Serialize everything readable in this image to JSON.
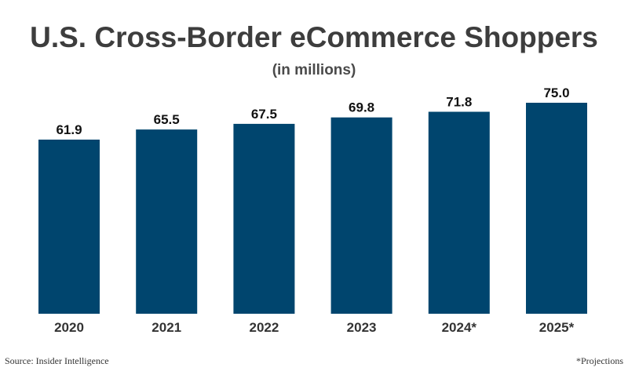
{
  "chart_data": {
    "type": "bar",
    "title": "U.S. Cross-Border eCommerce Shoppers",
    "subtitle": "(in millions)",
    "categories": [
      "2020",
      "2021",
      "2022",
      "2023",
      "2024*",
      "2025*"
    ],
    "values": [
      61.9,
      65.5,
      67.5,
      69.8,
      71.8,
      75.0
    ],
    "value_labels": [
      "61.9",
      "65.5",
      "67.5",
      "69.8",
      "71.8",
      "75.0"
    ],
    "xlabel": "",
    "ylabel": "",
    "ylim": [
      0,
      75
    ],
    "grid": false,
    "bar_color": "#00456e"
  },
  "footer": {
    "source": "Source: Insider Intelligence",
    "note": "*Projections"
  }
}
